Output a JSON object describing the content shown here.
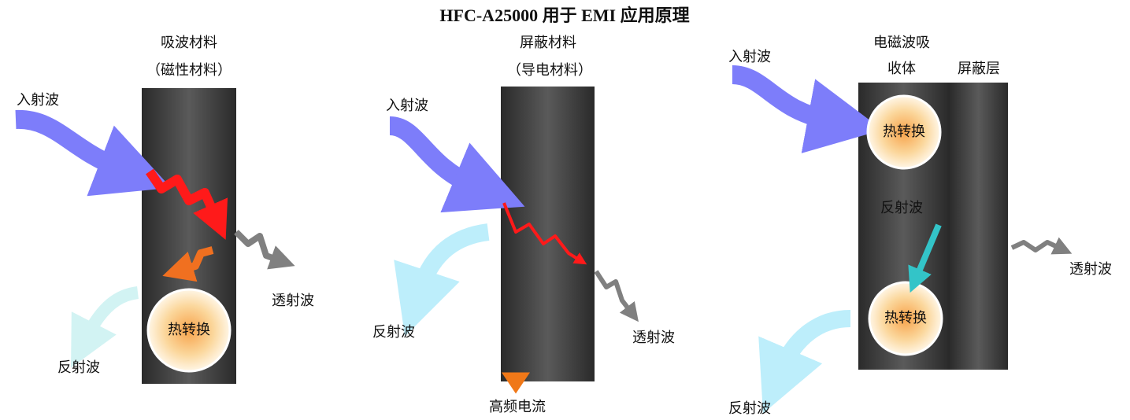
{
  "title": "HFC-A25000 用于 EMI 应用原理",
  "panels": [
    {
      "material": "吸波材料",
      "material_note": "（磁性材料）",
      "incident": "入射波",
      "transmitted": "透射波",
      "reflected": "反射波",
      "conversion": "热转换"
    },
    {
      "material": "屏蔽材料",
      "material_note": "（导电材料）",
      "incident": "入射波",
      "transmitted": "透射波",
      "reflected": "反射波",
      "current": "高频电流"
    },
    {
      "absorber_lines": [
        "电磁波吸",
        "收体"
      ],
      "shield": "屏蔽层",
      "incident": "入射波",
      "transmitted": "透射波",
      "reflected": "反射波",
      "inner_reflected": "反射波",
      "conversions": [
        "热转换",
        "热转换"
      ]
    }
  ]
}
